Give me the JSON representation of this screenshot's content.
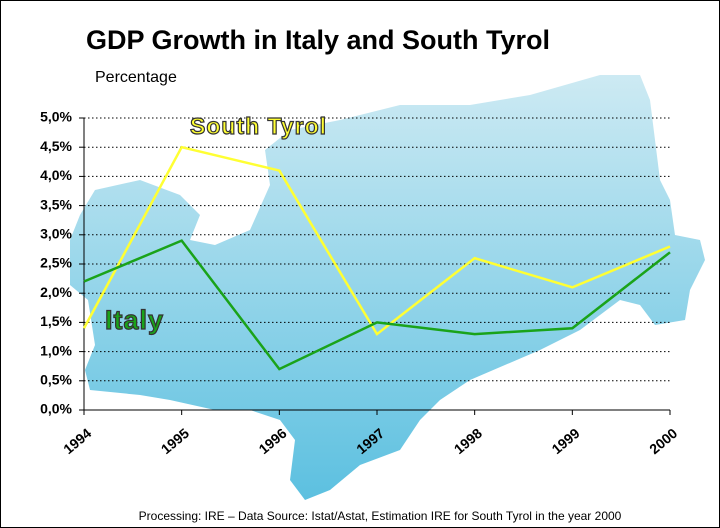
{
  "chart_data": {
    "type": "line",
    "title": "GDP Growth in Italy and South Tyrol",
    "y_label": "Percentage",
    "source": "Processing: IRE – Data Source: Istat/Astat, Estimation IRE for South Tyrol in the year 2000",
    "categories": [
      "1994",
      "1995",
      "1996",
      "1997",
      "1998",
      "1999",
      "2000"
    ],
    "series": [
      {
        "name": "South Tyrol",
        "color": "#ffff33",
        "values": [
          1.4,
          4.5,
          4.1,
          1.3,
          2.6,
          2.1,
          2.8
        ]
      },
      {
        "name": "Italy",
        "color": "#1aa31a",
        "values": [
          2.2,
          2.9,
          0.7,
          1.5,
          1.3,
          1.4,
          2.7
        ]
      }
    ],
    "ylim": [
      0,
      5
    ],
    "yticks": [
      {
        "value": 0,
        "label": "0,0%"
      },
      {
        "value": 0.5,
        "label": "0,5%"
      },
      {
        "value": 1,
        "label": "1,0%"
      },
      {
        "value": 1.5,
        "label": "1,5%"
      },
      {
        "value": 2,
        "label": "2,0%"
      },
      {
        "value": 2.5,
        "label": "2,5%"
      },
      {
        "value": 3,
        "label": "3,0%"
      },
      {
        "value": 3.5,
        "label": "3,5%"
      },
      {
        "value": 4,
        "label": "4,0%"
      },
      {
        "value": 4.5,
        "label": "4,5%"
      },
      {
        "value": 5,
        "label": "5,0%"
      }
    ],
    "grid": true
  }
}
